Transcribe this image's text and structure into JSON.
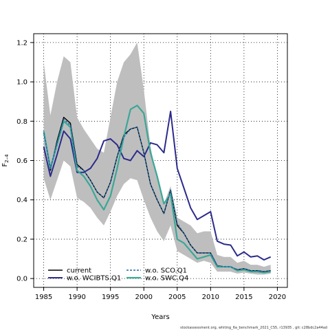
{
  "chart_data": {
    "type": "line",
    "xlabel": "Years",
    "ylabel_main": "F",
    "ylabel_sub": "2–4",
    "xlim": [
      1983.5,
      2021.5
    ],
    "ylim": [
      -0.045,
      1.245
    ],
    "xticks": [
      1985,
      1990,
      1995,
      2000,
      2005,
      2010,
      2015,
      2020
    ],
    "yticks": [
      0.0,
      0.2,
      0.4,
      0.6,
      0.8,
      1.0,
      1.2
    ],
    "grid": true,
    "legend_position": "bottom-left",
    "footer": "stockassessment.org, whiting_6a_benchmark_2021_CS5, r13935 , git: c28bdc2a44ad",
    "x": [
      1985,
      1986,
      1987,
      1988,
      1989,
      1990,
      1991,
      1992,
      1993,
      1994,
      1995,
      1996,
      1997,
      1998,
      1999,
      2000,
      2001,
      2002,
      2003,
      2004,
      2005,
      2006,
      2007,
      2008,
      2009,
      2010,
      2011,
      2012,
      2013,
      2014,
      2015,
      2016,
      2017,
      2018,
      2019
    ],
    "ci_band": {
      "upper": [
        1.1,
        0.83,
        1.0,
        1.13,
        1.1,
        0.82,
        0.76,
        0.71,
        0.66,
        0.64,
        0.82,
        1.0,
        1.1,
        1.14,
        1.2,
        0.96,
        0.67,
        0.51,
        0.38,
        0.47,
        0.31,
        0.29,
        0.27,
        0.23,
        0.24,
        0.24,
        0.12,
        0.11,
        0.11,
        0.08,
        0.09,
        0.07,
        0.07,
        0.06,
        0.07
      ],
      "lower": [
        0.51,
        0.4,
        0.5,
        0.6,
        0.57,
        0.41,
        0.39,
        0.36,
        0.31,
        0.27,
        0.34,
        0.42,
        0.48,
        0.51,
        0.5,
        0.4,
        0.31,
        0.24,
        0.19,
        0.27,
        0.14,
        0.12,
        0.1,
        0.08,
        0.09,
        0.08,
        0.035,
        0.035,
        0.035,
        0.025,
        0.03,
        0.025,
        0.02,
        0.02,
        0.025
      ],
      "color": "#bebebe"
    },
    "series": [
      {
        "name": "current",
        "color": "#000000",
        "width": 1.4,
        "dash": "",
        "values": [
          0.75,
          0.55,
          0.7,
          0.82,
          0.79,
          0.58,
          0.55,
          0.5,
          0.44,
          0.41,
          0.49,
          0.62,
          0.73,
          0.76,
          0.77,
          0.64,
          0.48,
          0.4,
          0.33,
          0.45,
          0.27,
          0.23,
          0.17,
          0.13,
          0.13,
          0.13,
          0.065,
          0.06,
          0.06,
          0.045,
          0.05,
          0.04,
          0.04,
          0.035,
          0.04
        ]
      },
      {
        "name": "w.o. WCIBTS.Q1",
        "color": "#2b2a8a",
        "width": 2.0,
        "dash": "",
        "values": [
          0.67,
          0.52,
          0.63,
          0.75,
          0.71,
          0.54,
          0.54,
          0.56,
          0.61,
          0.7,
          0.71,
          0.68,
          0.61,
          0.6,
          0.65,
          0.62,
          0.69,
          0.68,
          0.64,
          0.85,
          0.56,
          0.46,
          0.36,
          0.3,
          0.32,
          0.34,
          0.19,
          0.175,
          0.17,
          0.115,
          0.135,
          0.11,
          0.115,
          0.095,
          0.11
        ]
      },
      {
        "name": "w.o. SCO.Q1",
        "color": "#1f6aa6",
        "width": 1.5,
        "dash": "3,2",
        "values": [
          0.74,
          0.56,
          0.69,
          0.81,
          0.78,
          0.57,
          0.55,
          0.5,
          0.44,
          0.41,
          0.49,
          0.62,
          0.72,
          0.76,
          0.77,
          0.64,
          0.48,
          0.4,
          0.33,
          0.45,
          0.28,
          0.23,
          0.17,
          0.13,
          0.13,
          0.13,
          0.065,
          0.06,
          0.06,
          0.045,
          0.05,
          0.04,
          0.04,
          0.035,
          0.04
        ]
      },
      {
        "name": "w.o. SWC.Q4",
        "color": "#3aa796",
        "width": 2.2,
        "dash": "",
        "values": [
          0.75,
          0.56,
          0.68,
          0.8,
          0.77,
          0.55,
          0.52,
          0.47,
          0.4,
          0.35,
          0.42,
          0.56,
          0.72,
          0.86,
          0.88,
          0.84,
          0.64,
          0.52,
          0.38,
          0.43,
          0.2,
          0.18,
          0.14,
          0.1,
          0.11,
          0.12,
          0.06,
          0.06,
          0.06,
          0.04,
          0.045,
          0.035,
          0.035,
          0.03,
          0.035
        ]
      }
    ]
  }
}
